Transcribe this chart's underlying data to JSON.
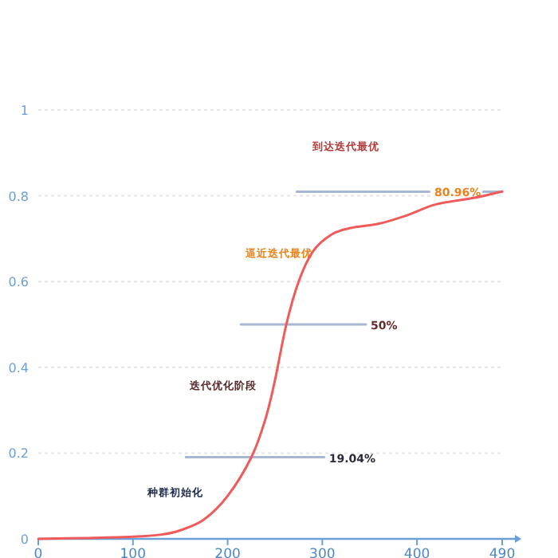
{
  "chart_data": {
    "type": "line",
    "x": [
      0,
      50,
      100,
      130,
      150,
      175,
      200,
      225,
      240,
      250,
      262,
      275,
      290,
      310,
      330,
      360,
      390,
      420,
      460,
      490
    ],
    "series": [
      {
        "color": "#f05a5a",
        "values": [
          0,
          0.002,
          0.005,
          0.01,
          0.02,
          0.045,
          0.1,
          0.19,
          0.28,
          0.37,
          0.5,
          0.6,
          0.67,
          0.71,
          0.725,
          0.735,
          0.755,
          0.78,
          0.795,
          0.81
        ]
      },
      {
        "color": "#a7b6d2",
        "x": [
          156,
          302
        ],
        "values": [
          0.1904,
          0.1904
        ]
      },
      {
        "color": "#a7b6d2",
        "x": [
          214,
          346
        ],
        "values": [
          0.5,
          0.5
        ]
      },
      {
        "color": "#a7b6d2",
        "x": [
          273,
          413,
          443,
          470,
          490
        ],
        "values": [
          0.8096,
          0.8096,
          null,
          0.8096,
          0.8096
        ]
      }
    ],
    "xlim": [
      0,
      490
    ],
    "xticks": [
      0,
      100,
      200,
      300,
      400,
      490
    ],
    "ylim": [
      0,
      1
    ],
    "yticks": [
      0,
      0.2,
      0.4,
      0.6,
      0.8,
      1
    ],
    "grid": "y",
    "marker": "none",
    "line_style": "solid",
    "annotations": [
      {
        "text": "19.04%",
        "x": 302,
        "y": 0.1904
      },
      {
        "text": "50%",
        "x": 346,
        "y": 0.5
      },
      {
        "text": "80.96%",
        "x": 443,
        "y": 0.8096
      },
      "种群初始化",
      "迭代优化阶段",
      "逼近迭代最优",
      "到达迭代最优"
    ]
  }
}
